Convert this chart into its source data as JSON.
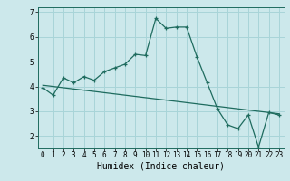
{
  "xlabel": "Humidex (Indice chaleur)",
  "bg_color": "#cce8eb",
  "line_color": "#1e6b5e",
  "grid_color": "#a8d4d8",
  "curve_x": [
    0,
    1,
    2,
    3,
    4,
    5,
    6,
    7,
    8,
    9,
    10,
    11,
    12,
    13,
    14,
    15,
    16,
    17,
    18,
    19,
    20,
    21,
    22,
    23
  ],
  "curve_y": [
    3.95,
    3.65,
    4.35,
    4.15,
    4.4,
    4.25,
    4.6,
    4.75,
    4.9,
    5.3,
    5.25,
    6.75,
    6.35,
    6.4,
    6.4,
    5.2,
    4.15,
    3.1,
    2.45,
    2.3,
    2.85,
    1.55,
    2.95,
    2.85
  ],
  "trend_x": [
    0,
    23
  ],
  "trend_y": [
    4.05,
    2.9
  ],
  "xlim": [
    -0.5,
    23.5
  ],
  "ylim": [
    1.5,
    7.2
  ],
  "xticks": [
    0,
    1,
    2,
    3,
    4,
    5,
    6,
    7,
    8,
    9,
    10,
    11,
    12,
    13,
    14,
    15,
    16,
    17,
    18,
    19,
    20,
    21,
    22,
    23
  ],
  "yticks": [
    2,
    3,
    4,
    5,
    6,
    7
  ],
  "axis_fontsize": 6.5,
  "tick_fontsize": 5.5,
  "xlabel_fontsize": 7.0
}
